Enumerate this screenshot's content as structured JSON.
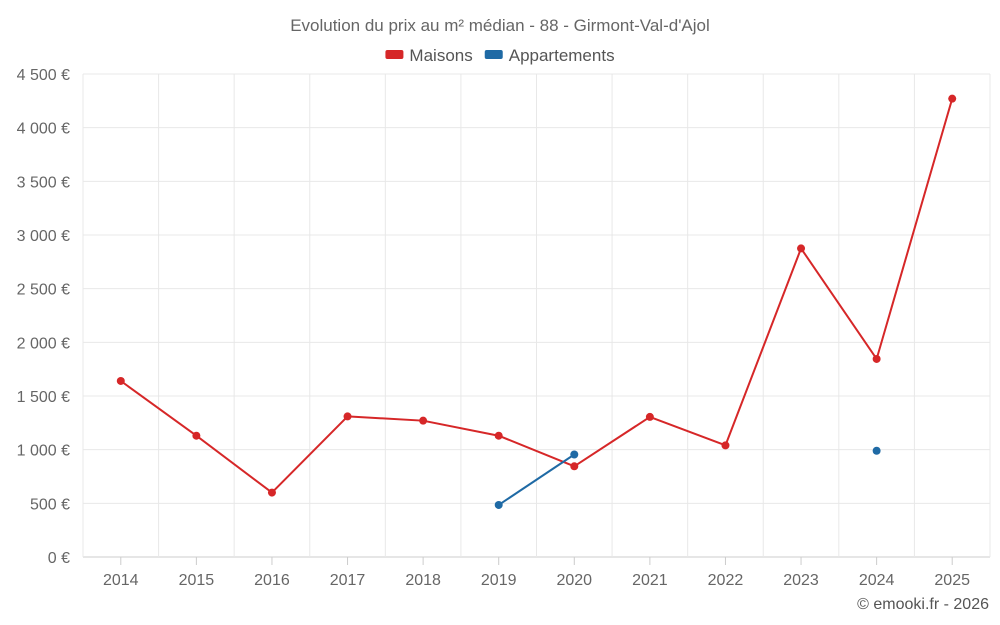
{
  "chart_data": {
    "type": "line",
    "title": "Evolution du prix au m² médian - 88 - Girmont-Val-d'Ajol",
    "categories": [
      "2014",
      "2015",
      "2016",
      "2017",
      "2018",
      "2019",
      "2020",
      "2021",
      "2022",
      "2023",
      "2024",
      "2025"
    ],
    "series": [
      {
        "name": "Maisons",
        "color": "#d62728",
        "values": [
          1640,
          1130,
          600,
          1310,
          1270,
          1130,
          845,
          1305,
          1040,
          2875,
          1845,
          4270
        ]
      },
      {
        "name": "Appartements",
        "color": "#1f6aa5",
        "values": [
          null,
          null,
          null,
          null,
          null,
          485,
          955,
          null,
          null,
          null,
          990,
          null
        ]
      }
    ],
    "ylim": [
      0,
      4500
    ],
    "yticks": [
      0,
      500,
      1000,
      1500,
      2000,
      2500,
      3000,
      3500,
      4000,
      4500
    ],
    "ytick_labels": [
      "0 €",
      "500 €",
      "1 000 €",
      "1 500 €",
      "2 000 €",
      "2 500 €",
      "3 000 €",
      "3 500 €",
      "4 000 €",
      "4 500 €"
    ],
    "xlabel": "",
    "ylabel": "",
    "legend_position": "top-center",
    "grid": true
  },
  "credit": "© emooki.fr - 2026"
}
